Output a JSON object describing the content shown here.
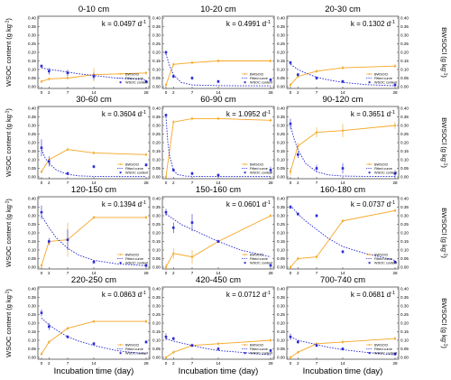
{
  "figure": {
    "y_left_label": "WSOC content (g kg",
    "y_left_sup": "-1",
    "y_right_label": "BWSOCl (g kg",
    "y_right_sup": "-1",
    "x_label": "Incubation time (day)",
    "k_prefix": "k = ",
    "k_unit": "d",
    "k_unit_sup": "-1"
  },
  "colors": {
    "bwsoc": "#f5a623",
    "wsoc": "#2a2ad6",
    "frame": "#333333"
  },
  "chart_data": [
    {
      "type": "line",
      "title": "0-10 cm",
      "k": "0.0497",
      "x": [
        0,
        2,
        7,
        14,
        28
      ],
      "series": [
        {
          "name": "BWSOCl",
          "values": [
            0.03,
            0.045,
            0.05,
            0.07,
            0.08
          ],
          "err": [
            0.01,
            0.01,
            0.01,
            0.04,
            0.01
          ]
        },
        {
          "name": "Fitted curve",
          "x": [
            0,
            2,
            4,
            7,
            10,
            14,
            20,
            28
          ],
          "values": [
            0.11,
            0.1,
            0.095,
            0.085,
            0.075,
            0.065,
            0.05,
            0.04
          ]
        },
        {
          "name": "WSOC content",
          "values": [
            0.12,
            0.09,
            0.08,
            0.06,
            0.03
          ],
          "err": [
            0.01,
            0.02,
            0.02,
            0.02,
            0.01
          ]
        }
      ],
      "xlim": [
        0,
        28
      ],
      "ylim": [
        0,
        0.4
      ],
      "xticks": [
        0,
        2,
        7,
        14,
        28
      ],
      "yticks": [
        0,
        0.05,
        0.1,
        0.15,
        0.2,
        0.25,
        0.3,
        0.35,
        0.4
      ]
    },
    {
      "type": "line",
      "title": "10-20 cm",
      "k": "0.4991",
      "x": [
        0,
        2,
        7,
        14,
        28
      ],
      "series": [
        {
          "name": "BWSOCl",
          "values": [
            0.01,
            0.13,
            0.14,
            0.15,
            0.15
          ],
          "err": [
            0.01,
            0.01,
            0.01,
            0.01,
            0.01
          ]
        },
        {
          "name": "Fitted curve",
          "x": [
            0,
            1,
            2,
            4,
            7,
            10,
            14,
            20,
            28
          ],
          "values": [
            0.19,
            0.12,
            0.07,
            0.025,
            0.01,
            0.008,
            0.006,
            0.005,
            0.005
          ]
        },
        {
          "name": "WSOC content",
          "values": [
            0.2,
            0.06,
            0.05,
            0.03,
            0.04
          ],
          "err": [
            0.01,
            0.01,
            0.01,
            0.01,
            0.01
          ]
        }
      ],
      "xlim": [
        0,
        28
      ],
      "ylim": [
        0,
        0.4
      ],
      "xticks": [
        0,
        2,
        7,
        14,
        28
      ],
      "yticks": [
        0,
        0.05,
        0.1,
        0.15,
        0.2,
        0.25,
        0.3,
        0.35,
        0.4
      ]
    },
    {
      "type": "line",
      "title": "20-30 cm",
      "k": "0.1302",
      "x": [
        0,
        2,
        7,
        14,
        28
      ],
      "series": [
        {
          "name": "BWSOCl",
          "values": [
            0.01,
            0.06,
            0.09,
            0.11,
            0.12
          ],
          "err": [
            0.01,
            0.01,
            0.01,
            0.01,
            0.01
          ]
        },
        {
          "name": "Fitted curve",
          "x": [
            0,
            2,
            4,
            7,
            10,
            14,
            20,
            28
          ],
          "values": [
            0.13,
            0.1,
            0.08,
            0.055,
            0.04,
            0.025,
            0.012,
            0.005
          ]
        },
        {
          "name": "WSOC content",
          "values": [
            0.14,
            0.07,
            0.05,
            0.03,
            0.01
          ],
          "err": [
            0.01,
            0.01,
            0.01,
            0.01,
            0.01
          ]
        }
      ],
      "xlim": [
        0,
        28
      ],
      "ylim": [
        0,
        0.4
      ],
      "xticks": [
        0,
        2,
        7,
        14,
        28
      ],
      "yticks": [
        0,
        0.05,
        0.1,
        0.15,
        0.2,
        0.25,
        0.3,
        0.35,
        0.4
      ]
    },
    {
      "type": "line",
      "title": "30-60 cm",
      "k": "0.3604",
      "x": [
        0,
        2,
        7,
        14,
        28
      ],
      "series": [
        {
          "name": "BWSOCl",
          "values": [
            0.03,
            0.1,
            0.16,
            0.14,
            0.13
          ],
          "err": [
            0.01,
            0.01,
            0.01,
            0.01,
            0.01
          ]
        },
        {
          "name": "Fitted curve",
          "x": [
            0,
            1,
            2,
            4,
            7,
            10,
            14,
            20,
            28
          ],
          "values": [
            0.16,
            0.11,
            0.08,
            0.04,
            0.015,
            0.006,
            0.003,
            0.002,
            0.002
          ]
        },
        {
          "name": "WSOC content",
          "values": [
            0.17,
            0.09,
            0.02,
            0.06,
            0.07
          ],
          "err": [
            0.05,
            0.03,
            0.01,
            0.01,
            0.01
          ]
        }
      ],
      "xlim": [
        0,
        28
      ],
      "ylim": [
        0,
        0.4
      ],
      "xticks": [
        0,
        2,
        7,
        14,
        28
      ],
      "yticks": [
        0,
        0.05,
        0.1,
        0.15,
        0.2,
        0.25,
        0.3,
        0.35,
        0.4
      ]
    },
    {
      "type": "line",
      "title": "60-90 cm",
      "k": "1.0952",
      "x": [
        0,
        2,
        7,
        14,
        28
      ],
      "series": [
        {
          "name": "BWSOCl",
          "values": [
            0.0,
            0.32,
            0.34,
            0.34,
            0.33
          ],
          "err": [
            0.01,
            0.01,
            0.01,
            0.01,
            0.01
          ]
        },
        {
          "name": "Fitted curve",
          "x": [
            0,
            0.5,
            1,
            2,
            3,
            5,
            7,
            14,
            28
          ],
          "values": [
            0.35,
            0.2,
            0.12,
            0.04,
            0.015,
            0.005,
            0.003,
            0.002,
            0.002
          ]
        },
        {
          "name": "WSOC content",
          "values": [
            0.36,
            0.04,
            0.02,
            0.01,
            0.04
          ],
          "err": [
            0.01,
            0.01,
            0.01,
            0.01,
            0.02
          ]
        }
      ],
      "xlim": [
        0,
        28
      ],
      "ylim": [
        0,
        0.4
      ],
      "xticks": [
        0,
        2,
        7,
        14,
        28
      ],
      "yticks": [
        0,
        0.05,
        0.1,
        0.15,
        0.2,
        0.25,
        0.3,
        0.35,
        0.4
      ]
    },
    {
      "type": "line",
      "title": "90-120 cm",
      "k": "0.3651",
      "x": [
        0,
        2,
        7,
        14,
        28
      ],
      "series": [
        {
          "name": "BWSOCl",
          "values": [
            0.03,
            0.18,
            0.26,
            0.27,
            0.3
          ],
          "err": [
            0.02,
            0.02,
            0.03,
            0.04,
            0.02
          ]
        },
        {
          "name": "Fitted curve",
          "x": [
            0,
            1,
            2,
            4,
            7,
            10,
            14,
            20,
            28
          ],
          "values": [
            0.3,
            0.22,
            0.16,
            0.08,
            0.03,
            0.012,
            0.005,
            0.003,
            0.002
          ]
        },
        {
          "name": "WSOC content",
          "values": [
            0.31,
            0.13,
            0.05,
            0.05,
            0.02
          ],
          "err": [
            0.03,
            0.02,
            0.02,
            0.03,
            0.02
          ]
        }
      ],
      "xlim": [
        0,
        28
      ],
      "ylim": [
        0,
        0.4
      ],
      "xticks": [
        0,
        2,
        7,
        14,
        28
      ],
      "yticks": [
        0,
        0.05,
        0.1,
        0.15,
        0.2,
        0.25,
        0.3,
        0.35,
        0.4
      ]
    },
    {
      "type": "line",
      "title": "120-150 cm",
      "k": "0.1394",
      "x": [
        0,
        2,
        7,
        14,
        28
      ],
      "series": [
        {
          "name": "BWSOCl",
          "values": [
            0.01,
            0.15,
            0.16,
            0.29,
            0.29
          ],
          "err": [
            0.01,
            0.02,
            0.1,
            0.01,
            0.01
          ]
        },
        {
          "name": "Fitted curve",
          "x": [
            0,
            2,
            4,
            7,
            10,
            14,
            20,
            28
          ],
          "values": [
            0.3,
            0.23,
            0.17,
            0.11,
            0.07,
            0.04,
            0.02,
            0.008
          ]
        },
        {
          "name": "WSOC content",
          "values": [
            0.32,
            0.15,
            0.16,
            0.03,
            0.01
          ],
          "err": [
            0.04,
            0.02,
            0.06,
            0.01,
            0.01
          ]
        }
      ],
      "xlim": [
        0,
        28
      ],
      "ylim": [
        0,
        0.4
      ],
      "xticks": [
        0,
        2,
        7,
        14,
        28
      ],
      "yticks": [
        0,
        0.05,
        0.1,
        0.15,
        0.2,
        0.25,
        0.3,
        0.35,
        0.4
      ]
    },
    {
      "type": "line",
      "title": "150-160 cm",
      "k": "0.0601",
      "x": [
        0,
        2,
        7,
        14,
        28
      ],
      "series": [
        {
          "name": "BWSOCl",
          "values": [
            0.0,
            0.08,
            0.06,
            0.15,
            0.3
          ],
          "err": [
            0.02,
            0.03,
            0.04,
            0.01,
            0.01
          ]
        },
        {
          "name": "Fitted curve",
          "x": [
            0,
            2,
            4,
            7,
            10,
            14,
            20,
            28
          ],
          "values": [
            0.31,
            0.28,
            0.25,
            0.22,
            0.19,
            0.15,
            0.1,
            0.06
          ]
        },
        {
          "name": "WSOC content",
          "values": [
            0.32,
            0.23,
            0.26,
            0.15,
            0.01
          ],
          "err": [
            0.02,
            0.03,
            0.05,
            0.01,
            0.01
          ]
        }
      ],
      "xlim": [
        0,
        28
      ],
      "ylim": [
        0,
        0.4
      ],
      "xticks": [
        0,
        2,
        7,
        14,
        28
      ],
      "yticks": [
        0,
        0.05,
        0.1,
        0.15,
        0.2,
        0.25,
        0.3,
        0.35,
        0.4
      ]
    },
    {
      "type": "line",
      "title": "160-180 cm",
      "k": "0.0737",
      "x": [
        0,
        2,
        7,
        14,
        28
      ],
      "series": [
        {
          "name": "BWSOCl",
          "values": [
            0.0,
            0.05,
            0.06,
            0.27,
            0.33
          ],
          "err": [
            0.01,
            0.01,
            0.01,
            0.01,
            0.01
          ]
        },
        {
          "name": "Fitted curve",
          "x": [
            0,
            2,
            4,
            7,
            10,
            14,
            20,
            28
          ],
          "values": [
            0.36,
            0.31,
            0.27,
            0.22,
            0.17,
            0.12,
            0.08,
            0.04
          ]
        },
        {
          "name": "WSOC content",
          "values": [
            0.35,
            0.31,
            0.3,
            0.09,
            0.03
          ],
          "err": [
            0.01,
            0.01,
            0.01,
            0.01,
            0.01
          ]
        }
      ],
      "xlim": [
        0,
        28
      ],
      "ylim": [
        0,
        0.4
      ],
      "xticks": [
        0,
        2,
        7,
        14,
        28
      ],
      "yticks": [
        0,
        0.05,
        0.1,
        0.15,
        0.2,
        0.25,
        0.3,
        0.35,
        0.4
      ]
    },
    {
      "type": "line",
      "title": "220-250 cm",
      "k": "0.0863",
      "x": [
        0,
        2,
        7,
        14,
        28
      ],
      "series": [
        {
          "name": "BWSOCl",
          "values": [
            0.02,
            0.09,
            0.17,
            0.21,
            0.21
          ],
          "err": [
            0.01,
            0.01,
            0.01,
            0.01,
            0.01
          ]
        },
        {
          "name": "Fitted curve",
          "x": [
            0,
            2,
            4,
            7,
            10,
            14,
            20,
            28
          ],
          "values": [
            0.23,
            0.19,
            0.16,
            0.12,
            0.095,
            0.07,
            0.04,
            0.02
          ]
        },
        {
          "name": "WSOC content",
          "values": [
            0.26,
            0.18,
            0.12,
            0.08,
            0.09
          ],
          "err": [
            0.02,
            0.02,
            0.01,
            0.01,
            0.01
          ]
        }
      ],
      "xlim": [
        0,
        28
      ],
      "ylim": [
        0,
        0.4
      ],
      "xticks": [
        0,
        2,
        7,
        14,
        28
      ],
      "yticks": [
        0,
        0.05,
        0.1,
        0.15,
        0.2,
        0.25,
        0.3,
        0.35,
        0.4
      ]
    },
    {
      "type": "line",
      "title": "420-450 cm",
      "k": "0.0712",
      "x": [
        0,
        2,
        7,
        14,
        28
      ],
      "series": [
        {
          "name": "BWSOCl",
          "values": [
            0.0,
            0.03,
            0.07,
            0.08,
            0.1
          ],
          "err": [
            0.01,
            0.01,
            0.01,
            0.01,
            0.01
          ]
        },
        {
          "name": "Fitted curve",
          "x": [
            0,
            2,
            4,
            7,
            10,
            14,
            20,
            28
          ],
          "values": [
            0.11,
            0.095,
            0.085,
            0.07,
            0.055,
            0.04,
            0.03,
            0.015
          ]
        },
        {
          "name": "WSOC content",
          "values": [
            0.12,
            0.11,
            0.07,
            0.05,
            0.04
          ],
          "err": [
            0.02,
            0.01,
            0.01,
            0.01,
            0.01
          ]
        }
      ],
      "xlim": [
        0,
        28
      ],
      "ylim": [
        0,
        0.4
      ],
      "xticks": [
        0,
        2,
        7,
        14,
        28
      ],
      "yticks": [
        0,
        0.05,
        0.1,
        0.15,
        0.2,
        0.25,
        0.3,
        0.35,
        0.4
      ]
    },
    {
      "type": "line",
      "title": "700-740 cm",
      "k": "0.0681",
      "x": [
        0,
        2,
        7,
        14,
        28
      ],
      "series": [
        {
          "name": "BWSOCl",
          "values": [
            0.0,
            0.03,
            0.08,
            0.09,
            0.11
          ],
          "err": [
            0.01,
            0.01,
            0.01,
            0.01,
            0.01
          ]
        },
        {
          "name": "Fitted curve",
          "x": [
            0,
            2,
            4,
            7,
            10,
            14,
            20,
            28
          ],
          "values": [
            0.12,
            0.1,
            0.09,
            0.075,
            0.06,
            0.045,
            0.03,
            0.015
          ]
        },
        {
          "name": "WSOC content",
          "values": [
            0.12,
            0.09,
            0.07,
            0.05,
            0.02
          ],
          "err": [
            0.02,
            0.01,
            0.01,
            0.01,
            0.01
          ]
        }
      ],
      "xlim": [
        0,
        28
      ],
      "ylim": [
        0,
        0.4
      ],
      "xticks": [
        0,
        2,
        7,
        14,
        28
      ],
      "yticks": [
        0,
        0.05,
        0.1,
        0.15,
        0.2,
        0.25,
        0.3,
        0.35,
        0.4
      ]
    }
  ]
}
